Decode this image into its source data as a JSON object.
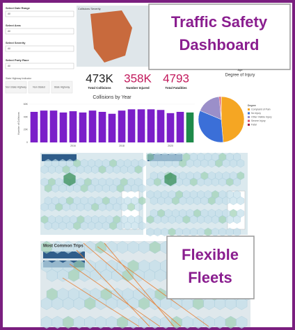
{
  "title_lines": [
    "Traffic Safety",
    "Dashboard"
  ],
  "fleets_lines": [
    "Flexible",
    "Fleets"
  ],
  "filters": [
    {
      "label": "Select Date Range",
      "value": "All"
    },
    {
      "label": "Select Area",
      "value": "All"
    },
    {
      "label": "Select Severity",
      "value": "All"
    },
    {
      "label": "Select Party Race",
      "value": "All"
    }
  ],
  "highway": {
    "label": "State Highway Indicator",
    "options": [
      "Non State Highway",
      "Non Stated",
      "State Highway"
    ]
  },
  "map_legend": "Collisions Severity",
  "histogram_labels": [
    "Age",
    "Degree of Injury"
  ],
  "kpis": [
    {
      "value": "473K",
      "label": "Total Collisions",
      "color": "#222222"
    },
    {
      "value": "358K",
      "label": "Number Injured",
      "color": "#c2185b"
    },
    {
      "value": "4793",
      "label": "Total Fatalities",
      "color": "#c2185b"
    }
  ],
  "trips_title": "Most Common Trips",
  "chart_data": [
    {
      "type": "bar",
      "title": "Collisions by Year",
      "y_label": "Number of Collisions",
      "categories": [
        null,
        null,
        null,
        null,
        "2016",
        null,
        null,
        null,
        null,
        "2018",
        null,
        null,
        null,
        null,
        "2020",
        null,
        null
      ],
      "values": [
        48000,
        50000,
        50000,
        47000,
        49000,
        47000,
        50000,
        48000,
        45000,
        50000,
        52000,
        52000,
        52000,
        51000,
        46000,
        48000,
        47000
      ],
      "color": "#7b1fc9",
      "last_color": "#1e8a4a",
      "ylim": [
        0,
        60000
      ],
      "yticks": [
        0,
        {
          "value": 20000,
          "label": "20K"
        },
        {
          "value": 40000,
          "label": "40K"
        },
        {
          "value": 60000,
          "label": "60K"
        }
      ]
    },
    {
      "type": "pie",
      "title": "Degree",
      "categories": [
        "Complaint of Pain",
        "No Injury",
        "Other Visible Injury",
        "Severe Injury",
        "Fatal"
      ],
      "values": [
        48.6,
        32.7,
        17.2,
        1.2,
        0.3
      ],
      "colors": [
        "#f5a623",
        "#3b6fd8",
        "#9b8fc9",
        "#d94f6a",
        "#a3173f"
      ]
    }
  ]
}
